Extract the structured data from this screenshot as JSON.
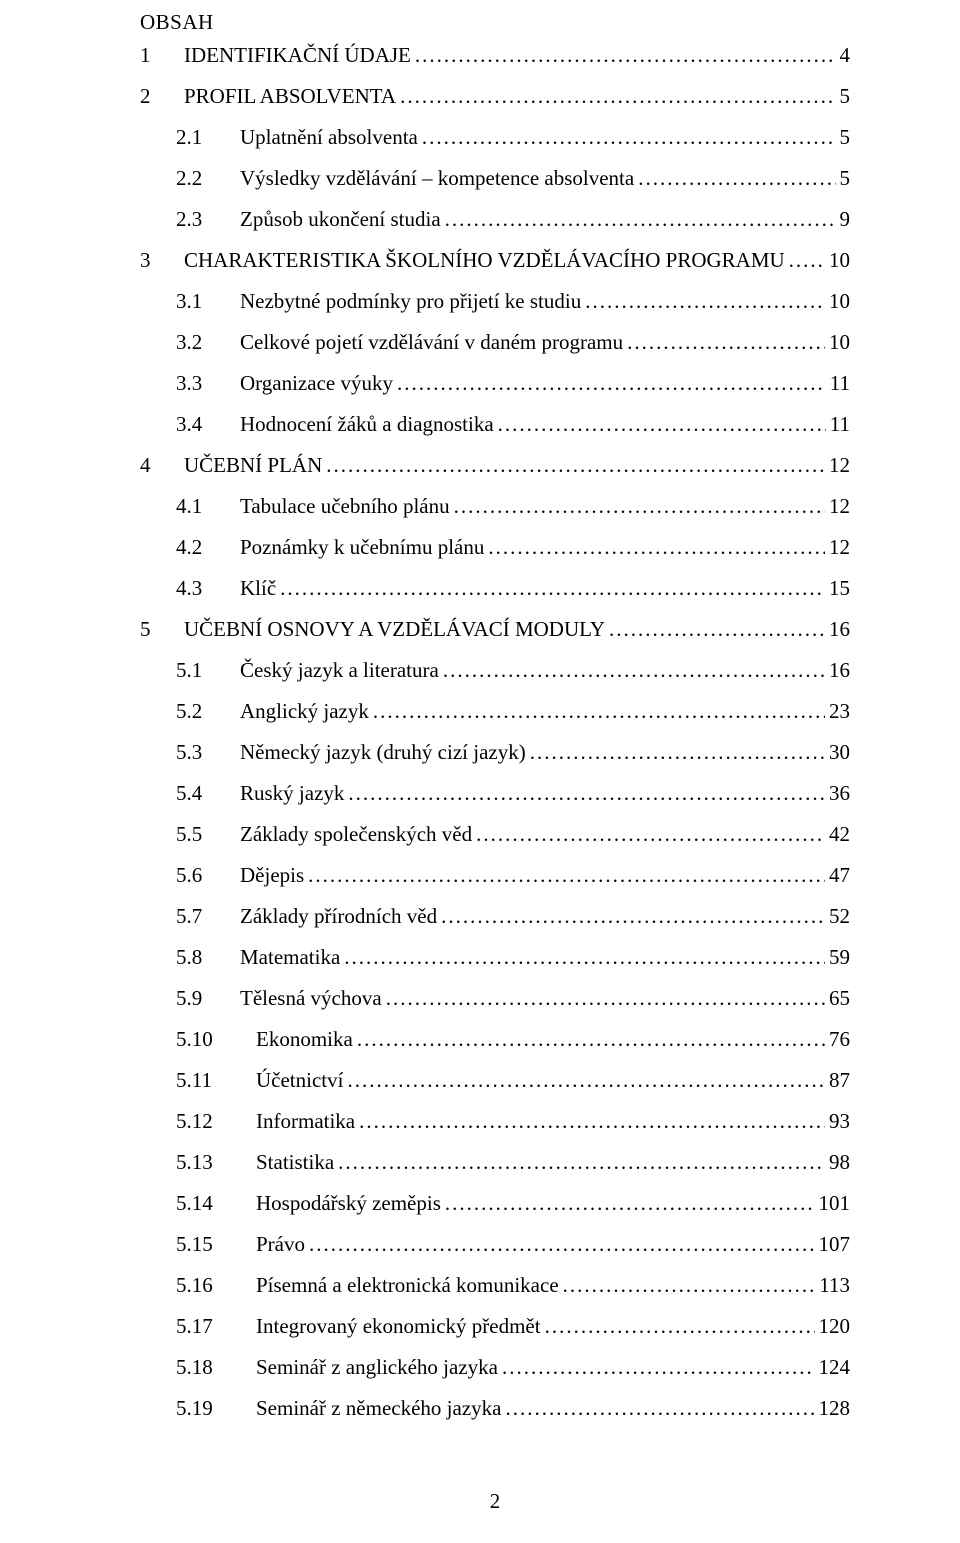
{
  "title": "OBSAH",
  "footer_page_number": "2",
  "toc": [
    {
      "indent": 0,
      "num": "1",
      "label": "IDENTIFIKAČNÍ ÚDAJE",
      "page": "4"
    },
    {
      "indent": 0,
      "num": "2",
      "label": "PROFIL ABSOLVENTA",
      "page": "5"
    },
    {
      "indent": 1,
      "num": "2.1",
      "label": "Uplatnění absolventa",
      "page": "5"
    },
    {
      "indent": 1,
      "num": "2.2",
      "label": "Výsledky vzdělávání – kompetence absolventa",
      "page": "5"
    },
    {
      "indent": 1,
      "num": "2.3",
      "label": "Způsob ukončení studia",
      "page": "9"
    },
    {
      "indent": 0,
      "num": "3",
      "label": "CHARAKTERISTIKA ŠKOLNÍHO VZDĚLÁVACÍHO PROGRAMU",
      "page": "10"
    },
    {
      "indent": 1,
      "num": "3.1",
      "label": "Nezbytné podmínky pro přijetí ke studiu",
      "page": "10"
    },
    {
      "indent": 1,
      "num": "3.2",
      "label": "Celkové pojetí vzdělávání v daném programu",
      "page": "10"
    },
    {
      "indent": 1,
      "num": "3.3",
      "label": "Organizace výuky",
      "page": "11"
    },
    {
      "indent": 1,
      "num": "3.4",
      "label": "Hodnocení žáků a diagnostika",
      "page": "11"
    },
    {
      "indent": 0,
      "num": "4",
      "label": "UČEBNÍ PLÁN",
      "page": "12"
    },
    {
      "indent": 1,
      "num": "4.1",
      "label": "Tabulace učebního plánu",
      "page": "12"
    },
    {
      "indent": 1,
      "num": "4.2",
      "label": "Poznámky k učebnímu plánu",
      "page": "12"
    },
    {
      "indent": 1,
      "num": "4.3",
      "label": "Klíč",
      "page": "15"
    },
    {
      "indent": 0,
      "num": "5",
      "label": "UČEBNÍ OSNOVY A VZDĚLÁVACÍ MODULY",
      "page": "16"
    },
    {
      "indent": 1,
      "num": "5.1",
      "label": "Český jazyk a literatura",
      "page": "16"
    },
    {
      "indent": 1,
      "num": "5.2",
      "label": "Anglický jazyk",
      "page": "23"
    },
    {
      "indent": 1,
      "num": "5.3",
      "label": "Německý jazyk (druhý cizí jazyk)",
      "page": "30"
    },
    {
      "indent": 1,
      "num": "5.4",
      "label": "Ruský jazyk",
      "page": "36"
    },
    {
      "indent": 1,
      "num": "5.5",
      "label": "Základy společenských věd",
      "page": "42"
    },
    {
      "indent": 1,
      "num": "5.6",
      "label": "Dějepis",
      "page": "47"
    },
    {
      "indent": 1,
      "num": "5.7",
      "label": "Základy přírodních věd",
      "page": "52"
    },
    {
      "indent": 1,
      "num": "5.8",
      "label": "Matematika",
      "page": "59"
    },
    {
      "indent": 1,
      "num": "5.9",
      "label": "Tělesná výchova",
      "page": "65"
    },
    {
      "indent": 2,
      "num": "5.10",
      "label": "Ekonomika",
      "page": "76"
    },
    {
      "indent": 2,
      "num": "5.11",
      "label": "Účetnictví",
      "page": "87"
    },
    {
      "indent": 2,
      "num": "5.12",
      "label": "Informatika",
      "page": "93"
    },
    {
      "indent": 2,
      "num": "5.13",
      "label": "Statistika",
      "page": "98"
    },
    {
      "indent": 2,
      "num": "5.14",
      "label": "Hospodářský zeměpis",
      "page": "101"
    },
    {
      "indent": 2,
      "num": "5.15",
      "label": "Právo",
      "page": "107"
    },
    {
      "indent": 2,
      "num": "5.16",
      "label": "Písemná a elektronická komunikace",
      "page": "113"
    },
    {
      "indent": 2,
      "num": "5.17",
      "label": "Integrovaný ekonomický předmět",
      "page": "120"
    },
    {
      "indent": 2,
      "num": "5.18",
      "label": "Seminář z anglického jazyka",
      "page": "124"
    },
    {
      "indent": 2,
      "num": "5.19",
      "label": "Seminář z německého jazyka",
      "page": "128"
    }
  ]
}
